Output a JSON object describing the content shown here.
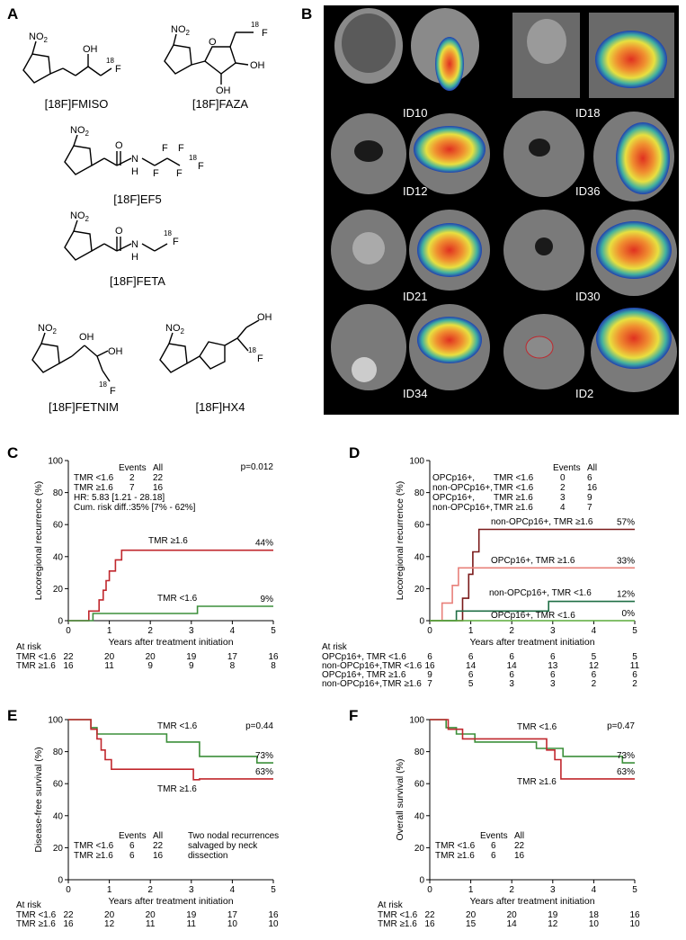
{
  "panel_a": {
    "letter": "A",
    "compounds": [
      {
        "name": "[18F]FMISO"
      },
      {
        "name": "[18F]FAZA"
      },
      {
        "name": "[18F]EF5"
      },
      {
        "name": "[18F]FETA"
      },
      {
        "name": "[18F]FETNIM"
      },
      {
        "name": "[18F]HX4"
      }
    ],
    "atoms": {
      "no2": "NO",
      "no2_sub": "2",
      "oh": "OH",
      "f18_mass": "18",
      "f": "F",
      "n": "N",
      "o": "O",
      "h": "H"
    }
  },
  "panel_b": {
    "letter": "B",
    "patients": [
      "ID10",
      "ID18",
      "ID12",
      "ID36",
      "ID21",
      "ID30",
      "ID34",
      "ID2"
    ]
  },
  "chart_data": [
    {
      "id": "C",
      "type": "line",
      "ylabel": "Locoregional recurrence  (%)",
      "xlabel": "Years after treatment initiation",
      "ylim": [
        0,
        100
      ],
      "xlim": [
        0,
        5
      ],
      "yticks": [
        0,
        20,
        40,
        60,
        80,
        100
      ],
      "xticks": [
        0,
        1,
        2,
        3,
        4,
        5
      ],
      "pvalue": "p=0.012",
      "table_header": [
        "Events",
        "All"
      ],
      "table_rows": [
        [
          "TMR <1.6",
          "2",
          "22"
        ],
        [
          "TMR ≥1.6",
          "7",
          "16"
        ]
      ],
      "extra_lines": [
        "HR: 5.83 [1.21 - 28.18]",
        "Cum. risk diff.:35% [7% - 62%]"
      ],
      "series": [
        {
          "name": "TMR ≥1.6",
          "color": "#c0272d",
          "end_label": "44%",
          "x": [
            0,
            0.5,
            0.5,
            0.75,
            0.75,
            0.85,
            0.85,
            0.92,
            0.92,
            1.0,
            1.0,
            1.15,
            1.15,
            1.3,
            1.3,
            5
          ],
          "y": [
            0,
            0,
            6,
            6,
            13,
            13,
            19,
            19,
            25,
            25,
            31,
            31,
            38,
            38,
            44,
            44
          ]
        },
        {
          "name": "TMR <1.6",
          "color": "#3c8f3a",
          "end_label": "9%",
          "x": [
            0,
            0.6,
            0.6,
            3.15,
            3.15,
            5
          ],
          "y": [
            0,
            0,
            4.5,
            4.5,
            9,
            9
          ]
        }
      ],
      "at_risk": {
        "title": "At risk",
        "rows": [
          {
            "label": "TMR <1.6",
            "values": [
              "22",
              "20",
              "20",
              "19",
              "17",
              "16"
            ]
          },
          {
            "label": "TMR ≥1.6",
            "values": [
              "16",
              "11",
              "9",
              "9",
              "8",
              "8"
            ]
          }
        ]
      }
    },
    {
      "id": "D",
      "type": "line",
      "ylabel": "Locoregional recurrence  (%)",
      "xlabel": "Years after treatment initiation",
      "ylim": [
        0,
        100
      ],
      "xlim": [
        0,
        5
      ],
      "yticks": [
        0,
        20,
        40,
        60,
        80,
        100
      ],
      "xticks": [
        0,
        1,
        2,
        3,
        4,
        5
      ],
      "table_header": [
        "Events",
        "All"
      ],
      "table_rows": [
        [
          "OPCp16+,",
          "TMR <1.6",
          "0",
          "6"
        ],
        [
          "non-OPCp16+,",
          "TMR <1.6",
          "2",
          "16"
        ],
        [
          "OPCp16+,",
          "TMR ≥1.6",
          "3",
          "9"
        ],
        [
          "non-OPCp16+,",
          "TMR ≥1.6",
          "4",
          "7"
        ]
      ],
      "series": [
        {
          "name": "non-OPCp16+, TMR ≥1.6",
          "color": "#7a1a1a",
          "end_label": "57%",
          "x": [
            0,
            0.8,
            0.8,
            0.95,
            0.95,
            1.05,
            1.05,
            1.2,
            1.2,
            5
          ],
          "y": [
            0,
            0,
            14,
            14,
            29,
            29,
            43,
            43,
            57,
            57
          ]
        },
        {
          "name": "OPCp16+, TMR ≥1.6",
          "color": "#e8807a",
          "end_label": "33%",
          "x": [
            0,
            0.3,
            0.3,
            0.55,
            0.55,
            0.7,
            0.7,
            5
          ],
          "y": [
            0,
            0,
            11,
            11,
            22,
            22,
            33,
            33
          ]
        },
        {
          "name": "non-OPCp16+, TMR <1.6",
          "color": "#1f6e45",
          "end_label": "12%",
          "x": [
            0,
            0.65,
            0.65,
            2.9,
            2.9,
            5
          ],
          "y": [
            0,
            0,
            6,
            6,
            12,
            12
          ]
        },
        {
          "name": "OPCp16+, TMR <1.6",
          "color": "#5aab3a",
          "end_label": "0%",
          "x": [
            0,
            5
          ],
          "y": [
            0,
            0
          ]
        }
      ],
      "at_risk": {
        "title": "At risk",
        "rows": [
          {
            "label": "OPCp16+,       TMR <1.6",
            "values": [
              "6",
              "6",
              "6",
              "6",
              "5",
              "5"
            ]
          },
          {
            "label": "non-OPCp16+,TMR <1.6",
            "values": [
              "16",
              "14",
              "14",
              "13",
              "12",
              "11"
            ]
          },
          {
            "label": "OPCp16+,       TMR ≥1.6",
            "values": [
              "9",
              "6",
              "6",
              "6",
              "6",
              "6"
            ]
          },
          {
            "label": "non-OPCp16+,TMR ≥1.6",
            "values": [
              "7",
              "5",
              "3",
              "3",
              "2",
              "2"
            ]
          }
        ]
      }
    },
    {
      "id": "E",
      "type": "line",
      "ylabel": "Disease-free survival  (%)",
      "xlabel": "Years after treatment initiation",
      "ylim": [
        0,
        100
      ],
      "xlim": [
        0,
        5
      ],
      "yticks": [
        0,
        20,
        40,
        60,
        80,
        100
      ],
      "xticks": [
        0,
        1,
        2,
        3,
        4,
        5
      ],
      "pvalue": "p=0.44",
      "table_header": [
        "Events",
        "All"
      ],
      "table_rows": [
        [
          "TMR <1.6",
          "6",
          "22"
        ],
        [
          "TMR ≥1.6",
          "6",
          "16"
        ]
      ],
      "note": [
        "Two nodal recurrences",
        "salvaged by neck",
        "dissection"
      ],
      "series": [
        {
          "name": "TMR <1.6",
          "color": "#3c8f3a",
          "end_label": "73%",
          "x": [
            0,
            0.55,
            0.55,
            0.7,
            0.7,
            2.4,
            2.4,
            3.2,
            3.2,
            4.6,
            4.6,
            5
          ],
          "y": [
            100,
            100,
            95,
            95,
            91,
            91,
            86,
            86,
            77,
            77,
            73,
            73
          ]
        },
        {
          "name": "TMR ≥1.6",
          "color": "#c0272d",
          "end_label": "63%",
          "x": [
            0,
            0.55,
            0.55,
            0.7,
            0.7,
            0.8,
            0.8,
            0.9,
            0.9,
            1.05,
            1.05,
            3.05,
            3.05,
            3.2,
            3.2,
            5
          ],
          "y": [
            100,
            100,
            94,
            94,
            88,
            88,
            81,
            81,
            75,
            75,
            69,
            69,
            62.5,
            62.5,
            63,
            63
          ]
        }
      ],
      "at_risk": {
        "title": "At risk",
        "rows": [
          {
            "label": "TMR <1.6",
            "values": [
              "22",
              "20",
              "20",
              "19",
              "17",
              "16"
            ]
          },
          {
            "label": "TMR ≥1.6",
            "values": [
              "16",
              "12",
              "11",
              "11",
              "10",
              "10"
            ]
          }
        ]
      }
    },
    {
      "id": "F",
      "type": "line",
      "ylabel": "Overall survival  (%)",
      "xlabel": "Years after treatment initiation",
      "ylim": [
        0,
        100
      ],
      "xlim": [
        0,
        5
      ],
      "yticks": [
        0,
        20,
        40,
        60,
        80,
        100
      ],
      "xticks": [
        0,
        1,
        2,
        3,
        4,
        5
      ],
      "pvalue": "p=0.47",
      "table_header": [
        "Events",
        "All"
      ],
      "table_rows": [
        [
          "TMR <1.6",
          "6",
          "22"
        ],
        [
          "TMR ≥1.6",
          "6",
          "16"
        ]
      ],
      "series": [
        {
          "name": "TMR <1.6",
          "color": "#3c8f3a",
          "end_label": "73%",
          "x": [
            0,
            0.4,
            0.4,
            0.65,
            0.65,
            1.1,
            1.1,
            2.6,
            2.6,
            3.25,
            3.25,
            4.7,
            4.7,
            5
          ],
          "y": [
            100,
            100,
            95,
            95,
            91,
            91,
            86,
            86,
            82,
            82,
            77,
            77,
            73,
            73
          ]
        },
        {
          "name": "TMR ≥1.6",
          "color": "#c0272d",
          "end_label": "63%",
          "x": [
            0,
            0.45,
            0.45,
            0.8,
            0.8,
            2.85,
            2.85,
            3.05,
            3.05,
            3.2,
            3.2,
            5
          ],
          "y": [
            100,
            100,
            94,
            94,
            88,
            88,
            81,
            81,
            75,
            75,
            63,
            63
          ]
        }
      ],
      "at_risk": {
        "title": "At risk",
        "rows": [
          {
            "label": "TMR <1.6",
            "values": [
              "22",
              "20",
              "20",
              "19",
              "18",
              "16"
            ]
          },
          {
            "label": "TMR ≥1.6",
            "values": [
              "16",
              "15",
              "14",
              "12",
              "10",
              "10"
            ]
          }
        ]
      }
    }
  ]
}
